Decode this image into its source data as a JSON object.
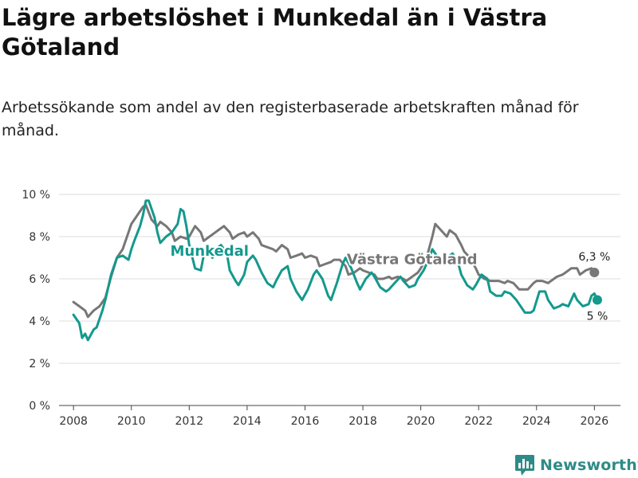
{
  "header": {
    "title": "Lägre arbetslöshet i Munkedal än i Västra Götaland",
    "subtitle": "Arbetssökande som andel av den registerbaserade arbetskraften månad för månad."
  },
  "brand": {
    "name": "Newsworthy",
    "color": "#2e8b86"
  },
  "chart_data": {
    "type": "line",
    "title": "Lägre arbetslöshet i Munkedal än i Västra Götaland",
    "xlabel": "",
    "ylabel": "",
    "xlim": [
      2007.5,
      2026.9
    ],
    "ylim": [
      0,
      10
    ],
    "x_ticks": [
      2008,
      2010,
      2012,
      2014,
      2016,
      2018,
      2020,
      2022,
      2024,
      2026
    ],
    "x_tick_labels": [
      "2008",
      "2010",
      "2012",
      "2014",
      "2016",
      "2018",
      "2020",
      "2022",
      "2024",
      "2026"
    ],
    "y_ticks": [
      0,
      2,
      4,
      6,
      8,
      10
    ],
    "y_tick_labels": [
      "0 %",
      "2 %",
      "4 %",
      "6 %",
      "8 %",
      "10 %"
    ],
    "grid": true,
    "series": [
      {
        "name": "Västra Götaland",
        "color": "#777777",
        "label_pos": [
          2019.7,
          6.7
        ],
        "end_value_label": "6,3 %",
        "points": [
          [
            2008.0,
            4.9
          ],
          [
            2008.2,
            4.7
          ],
          [
            2008.4,
            4.5
          ],
          [
            2008.5,
            4.2
          ],
          [
            2008.7,
            4.5
          ],
          [
            2008.9,
            4.7
          ],
          [
            2009.1,
            5.1
          ],
          [
            2009.3,
            6.1
          ],
          [
            2009.5,
            7.0
          ],
          [
            2009.7,
            7.4
          ],
          [
            2009.9,
            8.2
          ],
          [
            2010.0,
            8.6
          ],
          [
            2010.2,
            9.0
          ],
          [
            2010.4,
            9.4
          ],
          [
            2010.5,
            9.5
          ],
          [
            2010.7,
            8.8
          ],
          [
            2010.9,
            8.5
          ],
          [
            2011.0,
            8.7
          ],
          [
            2011.2,
            8.5
          ],
          [
            2011.4,
            8.2
          ],
          [
            2011.5,
            7.8
          ],
          [
            2011.7,
            8.0
          ],
          [
            2011.9,
            7.9
          ],
          [
            2012.0,
            8.0
          ],
          [
            2012.2,
            8.5
          ],
          [
            2012.4,
            8.2
          ],
          [
            2012.5,
            7.8
          ],
          [
            2012.7,
            8.0
          ],
          [
            2012.9,
            8.2
          ],
          [
            2013.0,
            8.3
          ],
          [
            2013.2,
            8.5
          ],
          [
            2013.4,
            8.2
          ],
          [
            2013.5,
            7.9
          ],
          [
            2013.7,
            8.1
          ],
          [
            2013.9,
            8.2
          ],
          [
            2014.0,
            8.0
          ],
          [
            2014.2,
            8.2
          ],
          [
            2014.4,
            7.9
          ],
          [
            2014.5,
            7.6
          ],
          [
            2014.7,
            7.5
          ],
          [
            2014.9,
            7.4
          ],
          [
            2015.0,
            7.3
          ],
          [
            2015.2,
            7.6
          ],
          [
            2015.4,
            7.4
          ],
          [
            2015.5,
            7.0
          ],
          [
            2015.7,
            7.1
          ],
          [
            2015.9,
            7.2
          ],
          [
            2016.0,
            7.0
          ],
          [
            2016.2,
            7.1
          ],
          [
            2016.4,
            7.0
          ],
          [
            2016.5,
            6.6
          ],
          [
            2016.7,
            6.7
          ],
          [
            2016.9,
            6.8
          ],
          [
            2017.0,
            6.9
          ],
          [
            2017.2,
            6.9
          ],
          [
            2017.4,
            6.6
          ],
          [
            2017.5,
            6.2
          ],
          [
            2017.7,
            6.3
          ],
          [
            2017.9,
            6.5
          ],
          [
            2018.0,
            6.4
          ],
          [
            2018.2,
            6.3
          ],
          [
            2018.4,
            6.2
          ],
          [
            2018.5,
            6.0
          ],
          [
            2018.7,
            6.0
          ],
          [
            2018.9,
            6.1
          ],
          [
            2019.0,
            6.0
          ],
          [
            2019.2,
            6.1
          ],
          [
            2019.4,
            6.0
          ],
          [
            2019.5,
            5.9
          ],
          [
            2019.7,
            6.1
          ],
          [
            2019.9,
            6.3
          ],
          [
            2020.0,
            6.5
          ],
          [
            2020.2,
            7.0
          ],
          [
            2020.4,
            8.0
          ],
          [
            2020.5,
            8.6
          ],
          [
            2020.7,
            8.3
          ],
          [
            2020.9,
            8.0
          ],
          [
            2021.0,
            8.3
          ],
          [
            2021.2,
            8.1
          ],
          [
            2021.4,
            7.6
          ],
          [
            2021.5,
            7.3
          ],
          [
            2021.7,
            7.0
          ],
          [
            2021.9,
            6.5
          ],
          [
            2022.0,
            6.2
          ],
          [
            2022.2,
            6.0
          ],
          [
            2022.4,
            5.9
          ],
          [
            2022.5,
            5.9
          ],
          [
            2022.7,
            5.9
          ],
          [
            2022.9,
            5.8
          ],
          [
            2023.0,
            5.9
          ],
          [
            2023.2,
            5.8
          ],
          [
            2023.4,
            5.5
          ],
          [
            2023.5,
            5.5
          ],
          [
            2023.7,
            5.5
          ],
          [
            2023.9,
            5.8
          ],
          [
            2024.0,
            5.9
          ],
          [
            2024.2,
            5.9
          ],
          [
            2024.4,
            5.8
          ],
          [
            2024.5,
            5.9
          ],
          [
            2024.7,
            6.1
          ],
          [
            2024.9,
            6.2
          ],
          [
            2025.0,
            6.3
          ],
          [
            2025.2,
            6.5
          ],
          [
            2025.4,
            6.5
          ],
          [
            2025.5,
            6.2
          ],
          [
            2025.7,
            6.4
          ],
          [
            2025.9,
            6.5
          ],
          [
            2026.0,
            6.3
          ]
        ]
      },
      {
        "name": "Munkedal",
        "color": "#14998d",
        "label_pos": [
          2012.7,
          7.1
        ],
        "end_value_label": "5 %",
        "points": [
          [
            2008.0,
            4.3
          ],
          [
            2008.2,
            3.9
          ],
          [
            2008.3,
            3.2
          ],
          [
            2008.4,
            3.4
          ],
          [
            2008.5,
            3.1
          ],
          [
            2008.7,
            3.6
          ],
          [
            2008.8,
            3.7
          ],
          [
            2009.0,
            4.5
          ],
          [
            2009.1,
            5.0
          ],
          [
            2009.3,
            6.2
          ],
          [
            2009.5,
            7.0
          ],
          [
            2009.7,
            7.1
          ],
          [
            2009.9,
            6.9
          ],
          [
            2010.0,
            7.4
          ],
          [
            2010.1,
            7.8
          ],
          [
            2010.3,
            8.5
          ],
          [
            2010.4,
            9.0
          ],
          [
            2010.5,
            9.7
          ],
          [
            2010.6,
            9.7
          ],
          [
            2010.8,
            8.9
          ],
          [
            2010.9,
            8.2
          ],
          [
            2011.0,
            7.7
          ],
          [
            2011.2,
            8.0
          ],
          [
            2011.4,
            8.2
          ],
          [
            2011.6,
            8.6
          ],
          [
            2011.7,
            9.3
          ],
          [
            2011.8,
            9.2
          ],
          [
            2011.9,
            8.5
          ],
          [
            2012.0,
            7.6
          ],
          [
            2012.2,
            6.5
          ],
          [
            2012.4,
            6.4
          ],
          [
            2012.5,
            7.1
          ],
          [
            2012.7,
            7.3
          ],
          [
            2012.8,
            7.0
          ],
          [
            2013.0,
            7.5
          ],
          [
            2013.1,
            7.6
          ],
          [
            2013.3,
            7.2
          ],
          [
            2013.4,
            6.4
          ],
          [
            2013.6,
            5.9
          ],
          [
            2013.7,
            5.7
          ],
          [
            2013.9,
            6.2
          ],
          [
            2014.0,
            6.8
          ],
          [
            2014.2,
            7.1
          ],
          [
            2014.3,
            6.9
          ],
          [
            2014.5,
            6.3
          ],
          [
            2014.7,
            5.8
          ],
          [
            2014.9,
            5.6
          ],
          [
            2015.0,
            5.9
          ],
          [
            2015.2,
            6.4
          ],
          [
            2015.4,
            6.6
          ],
          [
            2015.5,
            6.0
          ],
          [
            2015.7,
            5.4
          ],
          [
            2015.9,
            5.0
          ],
          [
            2016.1,
            5.5
          ],
          [
            2016.3,
            6.2
          ],
          [
            2016.4,
            6.4
          ],
          [
            2016.6,
            6.0
          ],
          [
            2016.8,
            5.2
          ],
          [
            2016.9,
            5.0
          ],
          [
            2017.1,
            5.8
          ],
          [
            2017.3,
            6.7
          ],
          [
            2017.4,
            7.0
          ],
          [
            2017.6,
            6.5
          ],
          [
            2017.8,
            5.8
          ],
          [
            2017.9,
            5.5
          ],
          [
            2018.1,
            6.0
          ],
          [
            2018.3,
            6.3
          ],
          [
            2018.4,
            6.1
          ],
          [
            2018.6,
            5.6
          ],
          [
            2018.8,
            5.4
          ],
          [
            2018.9,
            5.5
          ],
          [
            2019.1,
            5.8
          ],
          [
            2019.3,
            6.1
          ],
          [
            2019.4,
            5.9
          ],
          [
            2019.6,
            5.6
          ],
          [
            2019.8,
            5.7
          ],
          [
            2019.9,
            6.0
          ],
          [
            2020.1,
            6.4
          ],
          [
            2020.3,
            7.0
          ],
          [
            2020.4,
            7.4
          ],
          [
            2020.6,
            7.0
          ],
          [
            2020.8,
            6.8
          ],
          [
            2020.9,
            7.0
          ],
          [
            2021.1,
            7.2
          ],
          [
            2021.3,
            6.7
          ],
          [
            2021.4,
            6.2
          ],
          [
            2021.6,
            5.7
          ],
          [
            2021.8,
            5.5
          ],
          [
            2021.9,
            5.7
          ],
          [
            2022.1,
            6.2
          ],
          [
            2022.3,
            6.0
          ],
          [
            2022.4,
            5.4
          ],
          [
            2022.6,
            5.2
          ],
          [
            2022.8,
            5.2
          ],
          [
            2022.9,
            5.4
          ],
          [
            2023.1,
            5.3
          ],
          [
            2023.3,
            5.0
          ],
          [
            2023.4,
            4.8
          ],
          [
            2023.6,
            4.4
          ],
          [
            2023.8,
            4.4
          ],
          [
            2023.9,
            4.5
          ],
          [
            2024.1,
            5.4
          ],
          [
            2024.3,
            5.4
          ],
          [
            2024.4,
            5.0
          ],
          [
            2024.6,
            4.6
          ],
          [
            2024.8,
            4.7
          ],
          [
            2024.9,
            4.8
          ],
          [
            2025.1,
            4.7
          ],
          [
            2025.3,
            5.3
          ],
          [
            2025.4,
            5.0
          ],
          [
            2025.6,
            4.7
          ],
          [
            2025.8,
            4.8
          ],
          [
            2025.9,
            5.2
          ],
          [
            2026.0,
            5.3
          ],
          [
            2026.1,
            5.0
          ]
        ]
      }
    ]
  }
}
